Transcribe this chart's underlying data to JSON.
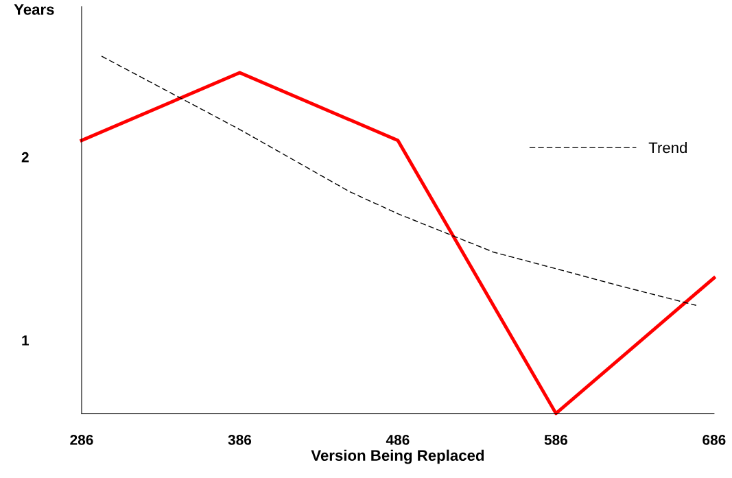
{
  "chart_data": {
    "type": "line",
    "xlabel": "Version Being Replaced",
    "ylabel": "Years",
    "x": [
      286,
      386,
      486,
      586,
      686
    ],
    "xlim": [
      286,
      686
    ],
    "xticks": [
      286,
      386,
      486,
      586,
      686
    ],
    "ylim": [
      0.6,
      2.82
    ],
    "yticks": [
      1,
      2
    ],
    "grid": false,
    "legend": "center right",
    "marker": "none",
    "series": [
      {
        "color": "#ff0000",
        "values": [
          2.09,
          2.46,
          2.09,
          0.6,
          1.34
        ],
        "line_style": "solid"
      },
      {
        "name": "Trend",
        "color": "#000000",
        "line_style": "dashed",
        "x": [
          298.6,
          386,
          455.6,
          486,
          546.7,
          586,
          624.8,
          674.7
        ],
        "values": [
          2.55,
          2.15,
          1.81,
          1.69,
          1.48,
          1.39,
          1.3,
          1.19
        ]
      }
    ]
  }
}
